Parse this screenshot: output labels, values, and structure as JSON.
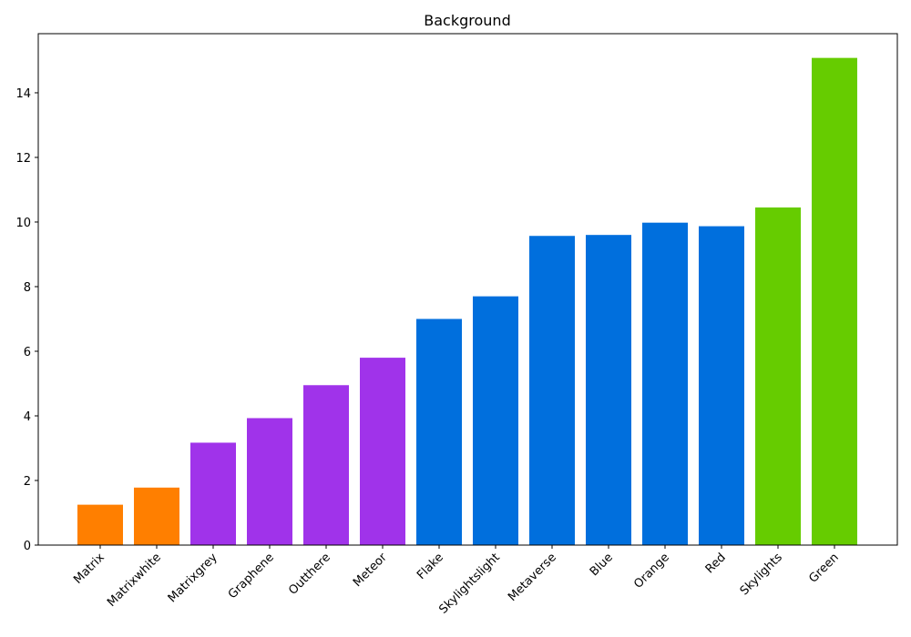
{
  "chart_data": {
    "type": "bar",
    "title": "Background",
    "xlabel": "",
    "ylabel": "",
    "categories": [
      "Matrix",
      "Matrixwhite",
      "Matrixgrey",
      "Graphene",
      "Outthere",
      "Meteor",
      "Flake",
      "Skylightslight",
      "Metaverse",
      "Blue",
      "Orange",
      "Red",
      "Skylights",
      "Green"
    ],
    "values": [
      1.25,
      1.78,
      3.17,
      3.93,
      4.95,
      5.8,
      7.0,
      7.7,
      9.57,
      9.6,
      9.98,
      9.87,
      10.45,
      15.08
    ],
    "colors": [
      "#ff7f00",
      "#ff7f00",
      "#a033ea",
      "#a033ea",
      "#a033ea",
      "#a033ea",
      "#006fdd",
      "#006fdd",
      "#006fdd",
      "#006fdd",
      "#006fdd",
      "#006fdd",
      "#66cc00",
      "#66cc00"
    ],
    "ylim": [
      0,
      15.83
    ],
    "yticks": [
      0,
      2,
      4,
      6,
      8,
      10,
      12,
      14
    ],
    "grid": false,
    "legend": "none"
  }
}
